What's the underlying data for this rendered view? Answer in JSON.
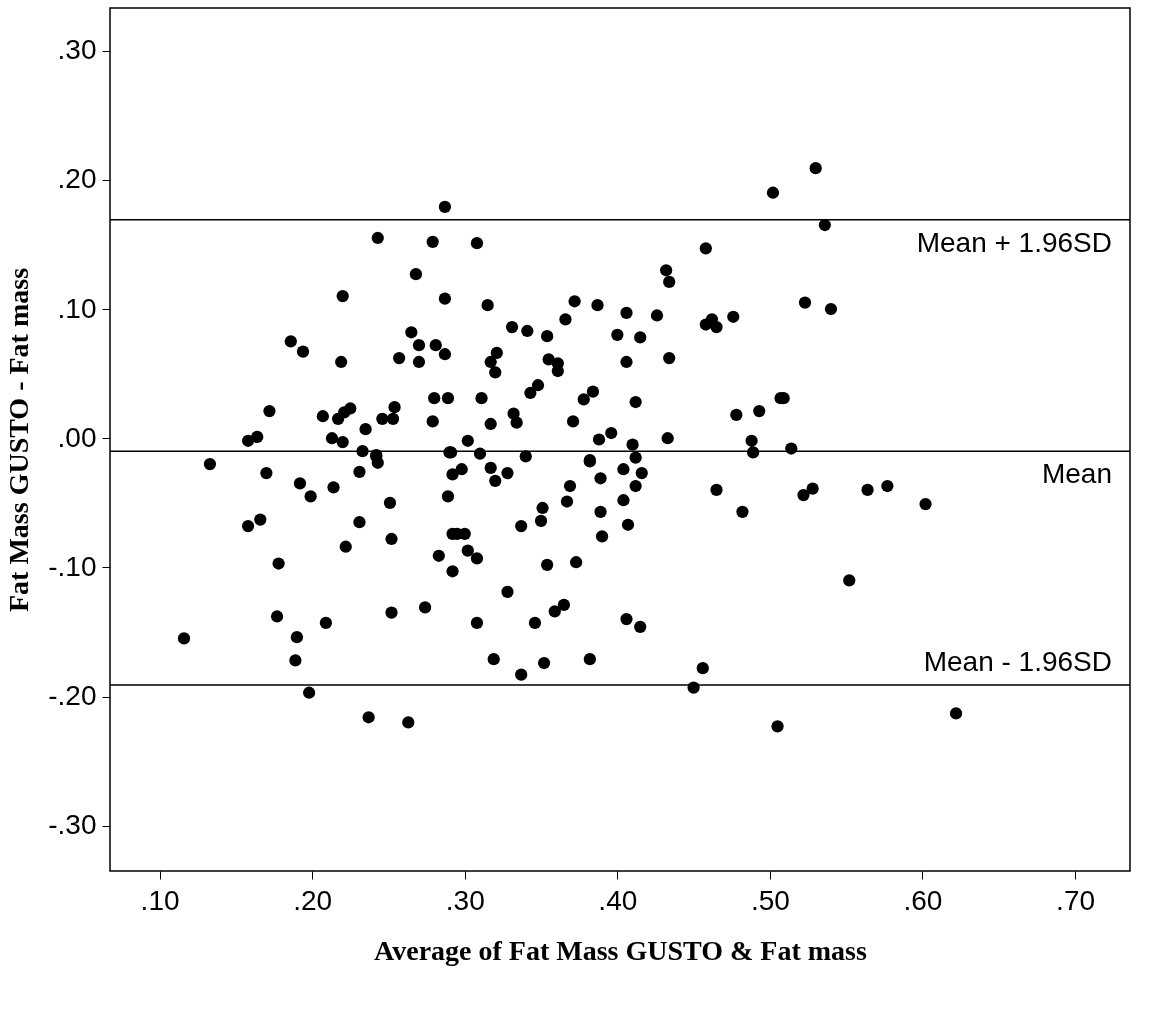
{
  "chart_data": {
    "type": "scatter",
    "xlabel": "Average of Fat Mass GUSTO & Fat mass",
    "ylabel": "Fat Mass GUSTO - Fat mass",
    "xlim": [
      0.0675,
      0.736
    ],
    "ylim": [
      -0.335,
      0.333
    ],
    "xticks": [
      {
        "value": 0.1,
        "label": ".10"
      },
      {
        "value": 0.2,
        "label": ".20"
      },
      {
        "value": 0.3,
        "label": ".30"
      },
      {
        "value": 0.4,
        "label": ".40"
      },
      {
        "value": 0.5,
        "label": ".50"
      },
      {
        "value": 0.6,
        "label": ".60"
      },
      {
        "value": 0.7,
        "label": ".70"
      }
    ],
    "yticks": [
      {
        "value": -0.3,
        "label": "-.30"
      },
      {
        "value": -0.2,
        "label": "-.20"
      },
      {
        "value": -0.1,
        "label": "-.10"
      },
      {
        "value": 0,
        "label": ".00"
      },
      {
        "value": 0.1,
        "label": ".10"
      },
      {
        "value": 0.2,
        "label": ".20"
      },
      {
        "value": 0.3,
        "label": ".30"
      }
    ],
    "grid": false,
    "marker": "circle",
    "ref_lines": [
      {
        "axis": "y",
        "value": 0.169,
        "label": "Mean + 1.96SD",
        "color": "#000000"
      },
      {
        "axis": "y",
        "value": -0.01,
        "label": "Mean",
        "color": "#000000"
      },
      {
        "axis": "y",
        "value": -0.191,
        "label": "Mean - 1.96SD",
        "color": "#000000"
      }
    ],
    "series": [
      {
        "color": "#000000",
        "x": [
          0.287,
          0.243,
          0.279,
          0.268,
          0.287,
          0.22,
          0.186,
          0.194,
          0.219,
          0.265,
          0.27,
          0.257,
          0.27,
          0.281,
          0.287,
          0.28,
          0.289,
          0.279,
          0.172,
          0.207,
          0.217,
          0.221,
          0.225,
          0.235,
          0.246,
          0.253,
          0.254,
          0.158,
          0.164,
          0.213,
          0.22,
          0.233,
          0.242,
          0.29,
          0.502,
          0.308,
          0.458,
          0.432,
          0.434,
          0.315,
          0.372,
          0.387,
          0.406,
          0.426,
          0.462,
          0.458,
          0.465,
          0.476,
          0.366,
          0.331,
          0.341,
          0.354,
          0.4,
          0.415,
          0.321,
          0.317,
          0.32,
          0.355,
          0.361,
          0.361,
          0.406,
          0.434,
          0.348,
          0.343,
          0.311,
          0.384,
          0.378,
          0.412,
          0.507,
          0.317,
          0.332,
          0.334,
          0.371,
          0.478,
          0.493,
          0.302,
          0.388,
          0.396,
          0.41,
          0.433,
          0.488,
          0.291,
          0.31,
          0.34,
          0.382,
          0.412,
          0.489,
          0.133,
          0.17,
          0.192,
          0.199,
          0.214,
          0.231,
          0.242,
          0.243,
          0.251,
          0.292,
          0.289,
          0.292,
          0.283,
          0.292,
          0.158,
          0.166,
          0.231,
          0.252,
          0.222,
          0.178,
          0.177,
          0.209,
          0.252,
          0.274,
          0.116,
          0.19,
          0.189,
          0.198,
          0.237,
          0.263,
          0.382,
          0.389,
          0.404,
          0.416,
          0.412,
          0.404,
          0.369,
          0.367,
          0.351,
          0.35,
          0.337,
          0.389,
          0.39,
          0.407,
          0.465,
          0.482,
          0.317,
          0.32,
          0.328,
          0.298,
          0.295,
          0.3,
          0.302,
          0.308,
          0.354,
          0.373,
          0.328,
          0.359,
          0.365,
          0.308,
          0.346,
          0.406,
          0.415,
          0.319,
          0.337,
          0.352,
          0.382,
          0.456,
          0.45,
          0.505,
          0.53,
          0.536,
          0.523,
          0.54,
          0.509,
          0.514,
          0.522,
          0.528,
          0.564,
          0.577,
          0.602,
          0.552,
          0.622
        ],
        "values": [
          0.179,
          0.155,
          0.152,
          0.127,
          0.108,
          0.11,
          0.075,
          0.067,
          0.059,
          0.082,
          0.072,
          0.062,
          0.059,
          0.072,
          0.065,
          0.031,
          0.031,
          0.013,
          0.021,
          0.017,
          0.015,
          0.02,
          0.023,
          0.007,
          0.015,
          0.015,
          0.024,
          -0.002,
          0.001,
          0.0,
          -0.003,
          -0.01,
          -0.013,
          -0.011,
          0.19,
          0.151,
          0.147,
          0.13,
          0.121,
          0.103,
          0.106,
          0.103,
          0.097,
          0.095,
          0.092,
          0.088,
          0.086,
          0.094,
          0.092,
          0.086,
          0.083,
          0.079,
          0.08,
          0.078,
          0.066,
          0.059,
          0.051,
          0.061,
          0.058,
          0.052,
          0.059,
          0.062,
          0.041,
          0.035,
          0.031,
          0.036,
          0.03,
          0.028,
          0.031,
          0.011,
          0.019,
          0.012,
          0.013,
          0.018,
          0.021,
          -0.002,
          -0.001,
          0.004,
          -0.005,
          0.0,
          -0.002,
          -0.011,
          -0.012,
          -0.014,
          -0.017,
          -0.015,
          -0.011,
          -0.02,
          -0.027,
          -0.035,
          -0.045,
          -0.038,
          -0.026,
          -0.014,
          -0.019,
          -0.05,
          -0.028,
          -0.045,
          -0.074,
          -0.091,
          -0.103,
          -0.068,
          -0.063,
          -0.065,
          -0.078,
          -0.084,
          -0.097,
          -0.138,
          -0.143,
          -0.135,
          -0.131,
          -0.155,
          -0.154,
          -0.172,
          -0.197,
          -0.216,
          -0.22,
          -0.018,
          -0.031,
          -0.024,
          -0.027,
          -0.037,
          -0.048,
          -0.037,
          -0.049,
          -0.054,
          -0.064,
          -0.068,
          -0.057,
          -0.076,
          -0.067,
          -0.04,
          -0.057,
          -0.023,
          -0.033,
          -0.027,
          -0.024,
          -0.074,
          -0.074,
          -0.087,
          -0.093,
          -0.098,
          -0.096,
          -0.119,
          -0.134,
          -0.129,
          -0.143,
          -0.143,
          -0.14,
          -0.146,
          -0.171,
          -0.183,
          -0.174,
          -0.171,
          -0.178,
          -0.193,
          -0.223,
          0.209,
          0.165,
          0.105,
          0.1,
          0.031,
          -0.008,
          -0.044,
          -0.039,
          -0.04,
          -0.037,
          -0.051,
          -0.11,
          -0.213
        ]
      }
    ]
  }
}
